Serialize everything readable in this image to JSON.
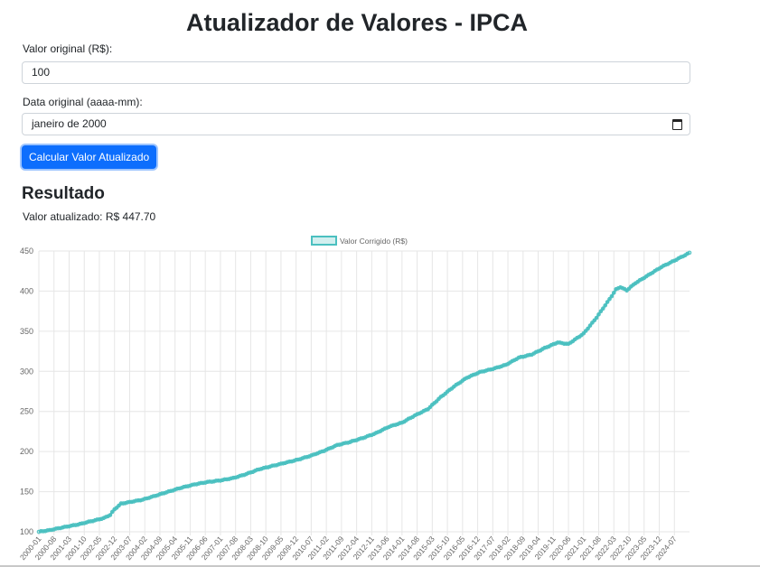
{
  "page": {
    "title": "Atualizador de Valores - IPCA",
    "value_label": "Valor original (R$):",
    "value_input": "100",
    "date_label": "Data original (aaaa-mm):",
    "date_input": "janeiro de 2000",
    "calc_button": "Calcular Valor Atualizado",
    "result_heading": "Resultado",
    "result_prefix": "Valor atualizado:",
    "result_value": "R$ 447.70"
  },
  "chart_data": {
    "type": "line",
    "title": "",
    "xlabel": "",
    "ylabel": "",
    "legend": {
      "position": "top",
      "entries": [
        "Valor Corrigido (R$)"
      ]
    },
    "series": [
      {
        "name": "Valor Corrigido (R$)",
        "color": "#4bc0c0"
      }
    ],
    "ylim": [
      100,
      450
    ],
    "yticks": [
      100,
      150,
      200,
      250,
      300,
      350,
      400,
      450
    ],
    "x_range": [
      "2000-01",
      "2025-02"
    ],
    "xticks": [
      "2000-01",
      "2000-08",
      "2001-03",
      "2001-10",
      "2002-05",
      "2002-12",
      "2003-07",
      "2004-02",
      "2004-09",
      "2005-04",
      "2005-11",
      "2006-06",
      "2007-01",
      "2007-08",
      "2008-03",
      "2008-10",
      "2009-05",
      "2009-12",
      "2010-07",
      "2011-02",
      "2011-09",
      "2012-04",
      "2012-11",
      "2013-06",
      "2014-01",
      "2014-08",
      "2015-03",
      "2015-10",
      "2016-05",
      "2016-12",
      "2017-07",
      "2018-02",
      "2018-09",
      "2019-04",
      "2019-11",
      "2020-06",
      "2021-01",
      "2021-08",
      "2022-03",
      "2022-10",
      "2023-05",
      "2023-12",
      "2024-07"
    ],
    "grid": true,
    "anchors": [
      {
        "x": "2000-01",
        "y": 100
      },
      {
        "x": "2000-06",
        "y": 102
      },
      {
        "x": "2001-01",
        "y": 106
      },
      {
        "x": "2001-07",
        "y": 109
      },
      {
        "x": "2002-01",
        "y": 113
      },
      {
        "x": "2002-07",
        "y": 117
      },
      {
        "x": "2002-10",
        "y": 121
      },
      {
        "x": "2002-12",
        "y": 128
      },
      {
        "x": "2003-03",
        "y": 135
      },
      {
        "x": "2003-07",
        "y": 137
      },
      {
        "x": "2004-01",
        "y": 140
      },
      {
        "x": "2004-07",
        "y": 145
      },
      {
        "x": "2005-01",
        "y": 150
      },
      {
        "x": "2005-07",
        "y": 155
      },
      {
        "x": "2006-01",
        "y": 159
      },
      {
        "x": "2006-07",
        "y": 162
      },
      {
        "x": "2007-01",
        "y": 164
      },
      {
        "x": "2007-07",
        "y": 167
      },
      {
        "x": "2008-01",
        "y": 172
      },
      {
        "x": "2008-07",
        "y": 178
      },
      {
        "x": "2009-01",
        "y": 182
      },
      {
        "x": "2009-07",
        "y": 186
      },
      {
        "x": "2010-01",
        "y": 190
      },
      {
        "x": "2010-07",
        "y": 195
      },
      {
        "x": "2011-01",
        "y": 201
      },
      {
        "x": "2011-07",
        "y": 208
      },
      {
        "x": "2012-01",
        "y": 212
      },
      {
        "x": "2012-07",
        "y": 217
      },
      {
        "x": "2013-01",
        "y": 223
      },
      {
        "x": "2013-07",
        "y": 231
      },
      {
        "x": "2014-01",
        "y": 236
      },
      {
        "x": "2014-07",
        "y": 245
      },
      {
        "x": "2015-01",
        "y": 253
      },
      {
        "x": "2015-07",
        "y": 268
      },
      {
        "x": "2016-01",
        "y": 281
      },
      {
        "x": "2016-07",
        "y": 292
      },
      {
        "x": "2017-01",
        "y": 299
      },
      {
        "x": "2017-07",
        "y": 303
      },
      {
        "x": "2018-01",
        "y": 308
      },
      {
        "x": "2018-07",
        "y": 317
      },
      {
        "x": "2019-01",
        "y": 321
      },
      {
        "x": "2019-07",
        "y": 329
      },
      {
        "x": "2020-01",
        "y": 336
      },
      {
        "x": "2020-06",
        "y": 334
      },
      {
        "x": "2021-01",
        "y": 347
      },
      {
        "x": "2021-07",
        "y": 367
      },
      {
        "x": "2022-01",
        "y": 390
      },
      {
        "x": "2022-04",
        "y": 402
      },
      {
        "x": "2022-06",
        "y": 405
      },
      {
        "x": "2022-09",
        "y": 401
      },
      {
        "x": "2023-01",
        "y": 410
      },
      {
        "x": "2023-07",
        "y": 420
      },
      {
        "x": "2024-01",
        "y": 430
      },
      {
        "x": "2024-07",
        "y": 438
      },
      {
        "x": "2025-02",
        "y": 447.7
      }
    ]
  }
}
